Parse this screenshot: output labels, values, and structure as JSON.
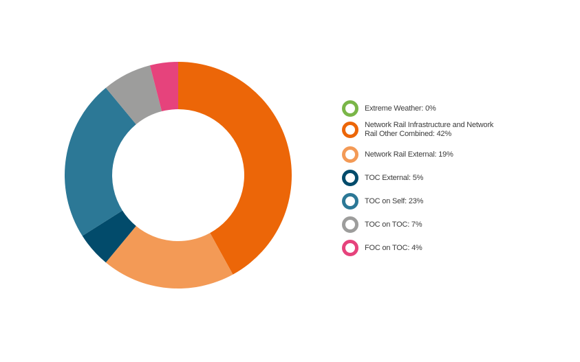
{
  "chart_data": {
    "type": "pie",
    "donut": true,
    "title": "",
    "legend_position": "right",
    "series": [
      {
        "label": "Extreme Weather: 0%",
        "value": 0,
        "color": "#7ab648"
      },
      {
        "label": "Network Rail Infrastructure and Network Rail Other Combined: 42%",
        "value": 42,
        "color": "#ec6608"
      },
      {
        "label": "Network Rail External: 19%",
        "value": 19,
        "color": "#f39a56"
      },
      {
        "label": "TOC External: 5%",
        "value": 5,
        "color": "#024b6b"
      },
      {
        "label": "TOC on Self: 23%",
        "value": 23,
        "color": "#2c7896"
      },
      {
        "label": "TOC on TOC: 7%",
        "value": 7,
        "color": "#9d9d9c"
      },
      {
        "label": "FOC on TOC: 4%",
        "value": 4,
        "color": "#e6437c"
      }
    ]
  }
}
